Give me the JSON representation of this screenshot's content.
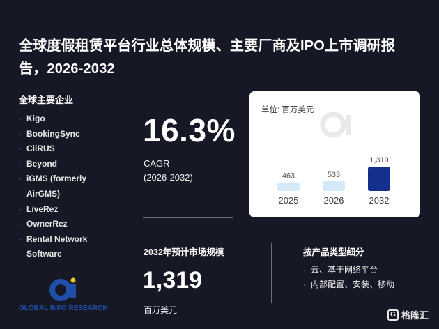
{
  "header": {
    "title": "全球度假租赁平台行业总体规模、主要厂商及IPO上市调研报告，2026-2032"
  },
  "companies": {
    "heading": "全球主要企业",
    "items": [
      "Kigo",
      "BookingSync",
      "CiiRUS",
      "Beyond",
      "iGMS (formerly AirGMS)",
      "LiveRez",
      "OwnerRez",
      "Rental Network Software"
    ]
  },
  "cagr": {
    "value": "16.3%",
    "label": "CAGR",
    "period": "(2026-2032)"
  },
  "market_size": {
    "heading": "2032年预计市场规模",
    "value": "1,319",
    "unit": "百万美元"
  },
  "segments": {
    "heading": "按产品类型细分",
    "items": [
      "云、基于网络平台",
      "内部配置、安装、移动"
    ]
  },
  "logo": {
    "text": "GLOBAL INFO RESEARCH",
    "mark": "Gi"
  },
  "brand": {
    "name": "格隆汇",
    "icon": "G"
  },
  "colors": {
    "background": "#161925",
    "bar_light": "#d6e9f8",
    "bar_dark": "#13308f",
    "logo_blue": "#1f4fa8",
    "logo_yellow": "#e8c81a"
  },
  "chart_data": {
    "type": "bar",
    "unit_label": "单位: 百万美元",
    "categories": [
      "2025",
      "2026",
      "2032"
    ],
    "values": [
      463,
      533,
      1319
    ],
    "value_labels": [
      "463",
      "533",
      "1,319"
    ]
  }
}
